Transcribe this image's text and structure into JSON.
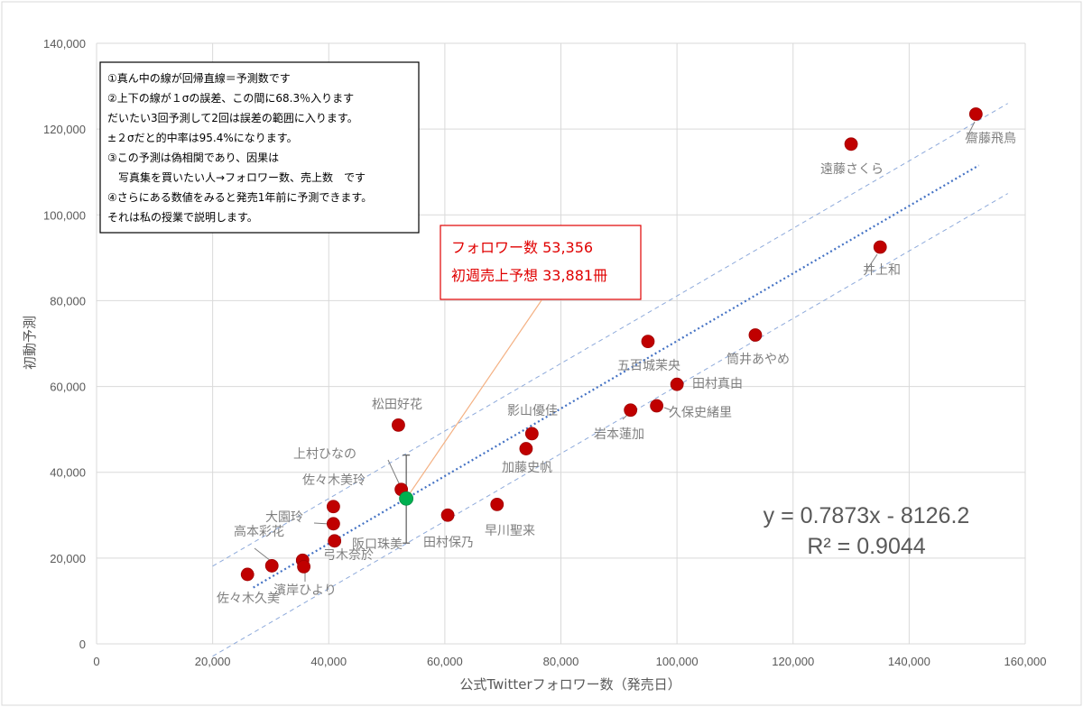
{
  "chart_data": {
    "type": "scatter",
    "xlabel": "公式Twitterフォロワー数（発売日）",
    "ylabel": "初動予測",
    "xlim": [
      0,
      160000
    ],
    "ylim": [
      0,
      140000
    ],
    "x_ticks": [
      "0",
      "20,000",
      "40,000",
      "60,000",
      "80,000",
      "100,000",
      "120,000",
      "140,000",
      "160,000"
    ],
    "y_ticks": [
      "0",
      "20,000",
      "40,000",
      "60,000",
      "80,000",
      "100,000",
      "120,000",
      "140,000"
    ],
    "grid": true,
    "colors": {
      "points": "#c00000",
      "highlight": "#00b050",
      "regression": "#4472c4",
      "bands": "#8eaadb",
      "callout": "#e00000"
    },
    "points": [
      {
        "name": "齋藤飛鳥",
        "x": 151500,
        "y": 123500
      },
      {
        "name": "遠藤さくら",
        "x": 130000,
        "y": 116500
      },
      {
        "name": "井上和",
        "x": 135000,
        "y": 92500
      },
      {
        "name": "筒井あやめ",
        "x": 113500,
        "y": 72000
      },
      {
        "name": "五百城茉央",
        "x": 95000,
        "y": 70500
      },
      {
        "name": "田村真由",
        "x": 100000,
        "y": 60500
      },
      {
        "name": "久保史緒里",
        "x": 96500,
        "y": 55500
      },
      {
        "name": "岩本蓮加",
        "x": 92000,
        "y": 54500
      },
      {
        "name": "影山優佳",
        "x": 75000,
        "y": 49000
      },
      {
        "name": "加藤史帆",
        "x": 74000,
        "y": 45500
      },
      {
        "name": "早川聖来",
        "x": 69000,
        "y": 32500
      },
      {
        "name": "田村保乃",
        "x": 60500,
        "y": 30000
      },
      {
        "name": "松田好花",
        "x": 52000,
        "y": 51000
      },
      {
        "name": "上村ひなの",
        "x": 52500,
        "y": 36000
      },
      {
        "name": "佐々木美玲",
        "x": 40800,
        "y": 32000
      },
      {
        "name": "大園玲",
        "x": 40800,
        "y": 28000
      },
      {
        "name": "阪口珠美",
        "x": 41000,
        "y": 24000
      },
      {
        "name": "弓木奈於",
        "x": 35500,
        "y": 19500
      },
      {
        "name": "濱岸ひより",
        "x": 35700,
        "y": 18000
      },
      {
        "name": "高本彩花",
        "x": 30200,
        "y": 18200
      },
      {
        "name": "佐々木久美",
        "x": 26000,
        "y": 16200
      }
    ],
    "highlight_point": {
      "x": 53356,
      "y": 33881,
      "error_bar": [
        23500,
        44000
      ]
    },
    "regression": {
      "slope": 0.7873,
      "intercept": -8126.2,
      "x_range": [
        27000,
        152000
      ]
    },
    "bands": {
      "offset": 10500,
      "x_range": [
        20000,
        157000
      ]
    },
    "equation": "y = 0.7873x - 8126.2",
    "r_squared": "R² = 0.9044",
    "callout": {
      "line1": "フォロワー数 53,356",
      "line2": "初週売上予想 33,881冊"
    },
    "notes": [
      "①真ん中の線が回帰直線＝予測数です",
      "②上下の線が１σの誤差、この間に68.3％入ります",
      "だいたい3回予測して2回は誤差の範囲に入ります。",
      "±２σだと的中率は95.4%になります。",
      "③この予測は偽相関であり、因果は",
      "　写真集を買いたい人→フォロワー数、売上数　です",
      "④さらにある数値をみると発売1年前に予測できます。",
      "それは私の授業で説明します。"
    ]
  }
}
